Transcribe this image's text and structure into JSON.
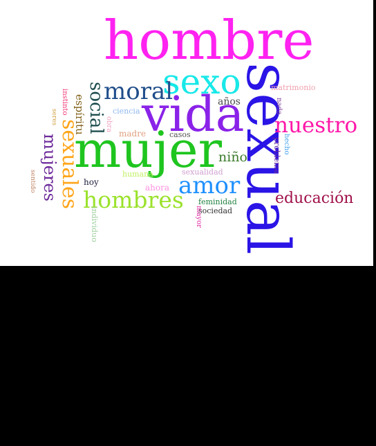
{
  "words": {
    "hombre": "hombre",
    "sexual": "sexual",
    "vida": "vida",
    "mujer": "mujer",
    "sexo": "sexo",
    "moral": "moral",
    "nuestro": "nuestro",
    "amor": "amor",
    "hombres": "hombres",
    "sexuales": "sexuales",
    "social": "social",
    "mujeres": "mujeres",
    "educacion": "educación",
    "nino": "niño",
    "espiritu": "espíritu",
    "anos": "años",
    "matrimonio": "matrimonio",
    "nada": "nada",
    "problema": "problema",
    "hecho": "hecho",
    "instinto": "instinto",
    "seres": "seres",
    "sentido": "sentido",
    "ciencia": "ciencia",
    "obra": "obra",
    "madre": "madre",
    "casos": "casos",
    "humana": "humana",
    "sexualidad": "sexualidad",
    "hoy": "hoy",
    "ahora": "ahora",
    "feminidad": "feminidad",
    "sociedad": "sociedad",
    "mayor": "mayor",
    "individuo": "individuo"
  },
  "colors": {
    "hombre": "#ff22f0",
    "sexual": "#2a14e6",
    "vida": "#8a22e8",
    "mujer": "#1fc51f",
    "sexo": "#18e8e8",
    "moral": "#1f4d8a",
    "nuestro": "#ff18a8",
    "amor": "#1e90ff",
    "hombres": "#9be22c",
    "sexuales": "#ffa51a",
    "social": "#1d4d4d",
    "mujeres": "#6d2a9a",
    "educacion": "#a0104a",
    "nino": "#3a7a2a",
    "espiritu": "#806018",
    "anos": "#4a4a4a",
    "matrimonio": "#f0a0b0",
    "nada": "#7a3a9a",
    "problema": "#6a2aa0",
    "hecho": "#40a0f0",
    "instinto": "#f03070",
    "seres": "#d0a040",
    "sentido": "#c08060",
    "ciencia": "#90b8f0",
    "obra": "#f0a0c0",
    "madre": "#e0a080",
    "casos": "#505050",
    "humana": "#c0f060",
    "sexualidad": "#d0a0d0",
    "hoy": "#202040",
    "ahora": "#ff90e0",
    "feminidad": "#208040",
    "sociedad": "#303030",
    "mayor": "#e020a0",
    "individuo": "#a0d0a0"
  }
}
